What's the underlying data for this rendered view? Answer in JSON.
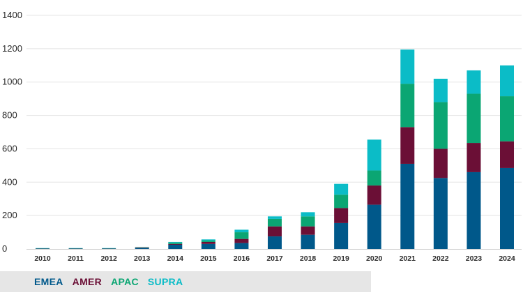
{
  "chart_data": {
    "type": "bar",
    "stacked": true,
    "title": "",
    "xlabel": "",
    "ylabel": "",
    "ylim": [
      0,
      1400
    ],
    "yticks": [
      0,
      200,
      400,
      600,
      800,
      1000,
      1200,
      1400
    ],
    "grid": true,
    "legend_position": "bottom-left",
    "categories": [
      "2010",
      "2011",
      "2012",
      "2013",
      "2014",
      "2015",
      "2016",
      "2017",
      "2018",
      "2019",
      "2020",
      "2021",
      "2022",
      "2023",
      "2024"
    ],
    "series": [
      {
        "name": "EMEA",
        "color": "#00588a",
        "values": [
          2,
          2,
          2,
          5,
          25,
          30,
          35,
          75,
          85,
          155,
          265,
          510,
          425,
          460,
          485
        ]
      },
      {
        "name": "AMER",
        "color": "#6b0f36",
        "values": [
          1,
          1,
          1,
          3,
          5,
          12,
          25,
          60,
          50,
          90,
          115,
          220,
          175,
          175,
          160
        ]
      },
      {
        "name": "APAC",
        "color": "#0ba673",
        "values": [
          1,
          1,
          1,
          2,
          8,
          8,
          40,
          45,
          60,
          80,
          90,
          260,
          280,
          295,
          270
        ]
      },
      {
        "name": "SUPRA",
        "color": "#0bbcc7",
        "values": [
          1,
          1,
          1,
          1,
          4,
          7,
          15,
          15,
          25,
          65,
          185,
          205,
          140,
          140,
          185
        ]
      }
    ]
  }
}
